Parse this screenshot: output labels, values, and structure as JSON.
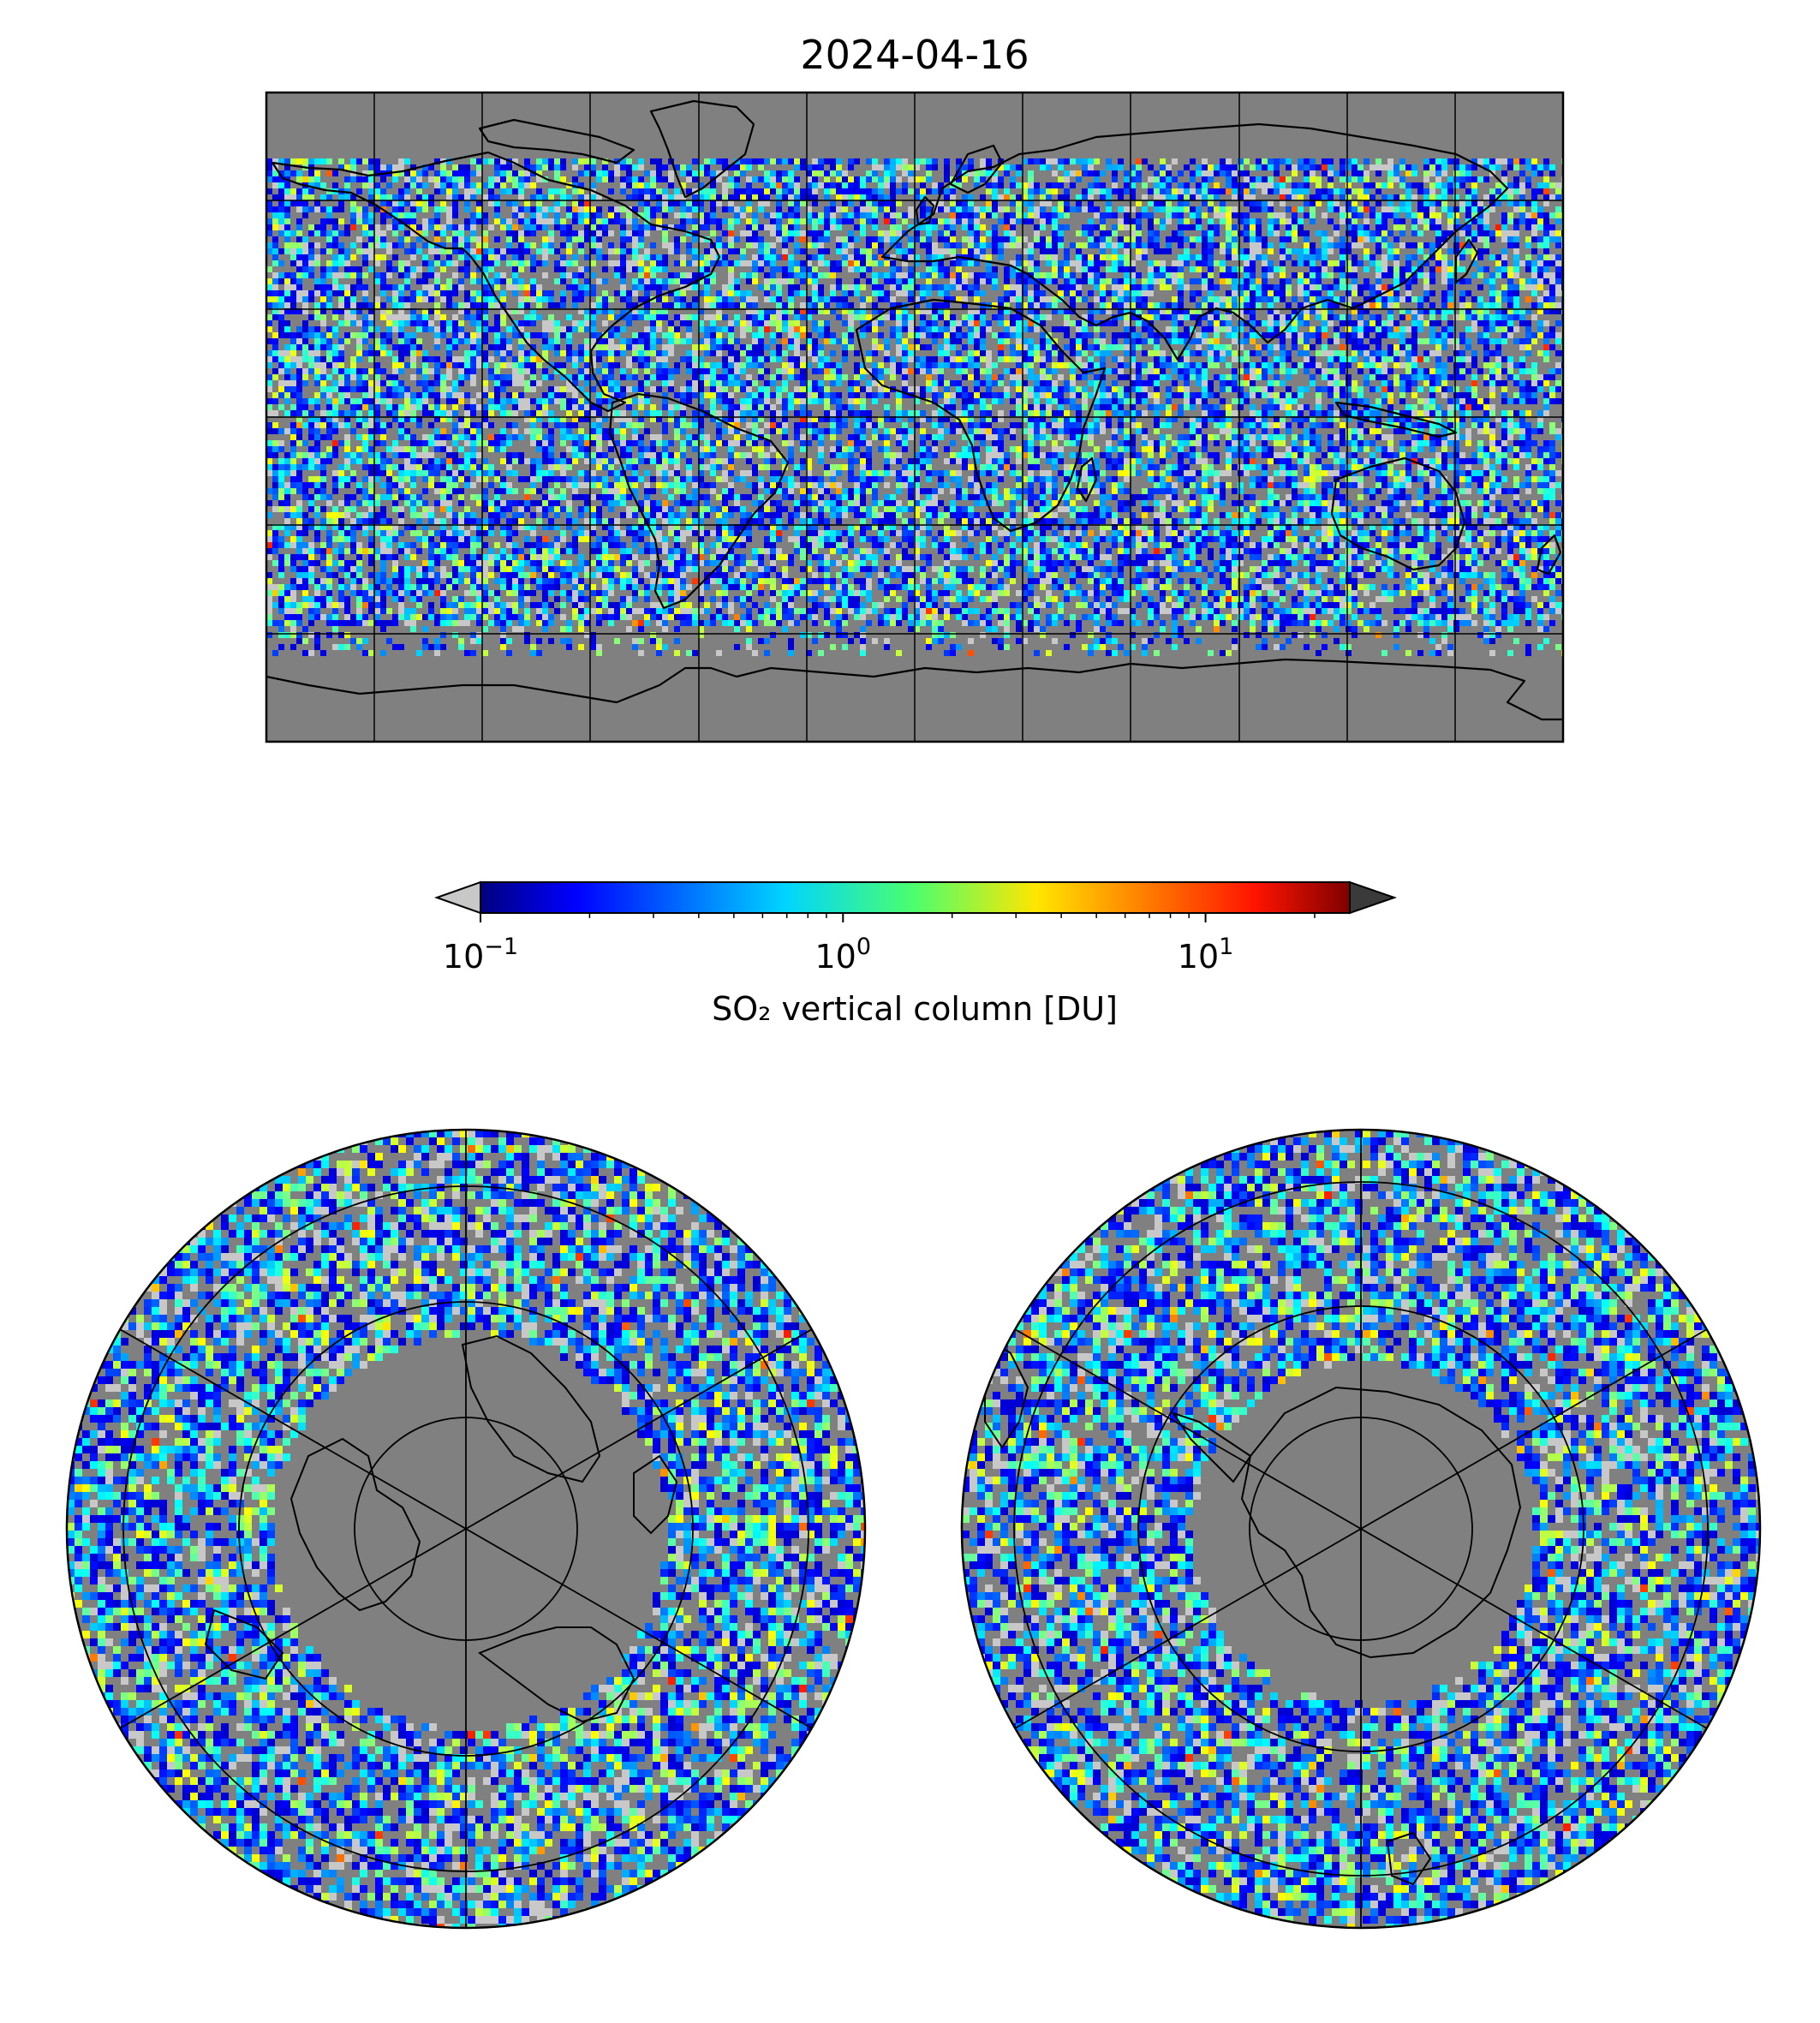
{
  "title": "2024-04-16",
  "colorbar": {
    "label": "SO₂ vertical column [DU]",
    "scale": "log",
    "colormap": "jet",
    "range": [
      0.1,
      25
    ],
    "ticks": [
      {
        "value": 0.1,
        "base": "10",
        "exp": "−1"
      },
      {
        "value": 1,
        "base": "10",
        "exp": "0"
      },
      {
        "value": 10,
        "base": "10",
        "exp": "1"
      }
    ],
    "extend_under_color": "#c8c8c8",
    "extend_over_color": "#3a3a3a"
  },
  "maps": [
    {
      "projection": "PlateCarree",
      "extent": "global",
      "gridlines": "60° lon / 30° lat"
    },
    {
      "projection": "NorthPolarStereo"
    },
    {
      "projection": "SouthPolarStereo"
    }
  ],
  "colors": {
    "no_data": "#808080",
    "below_range": "#c8c8c8",
    "coastline": "#000000",
    "gridline": "#000000"
  }
}
